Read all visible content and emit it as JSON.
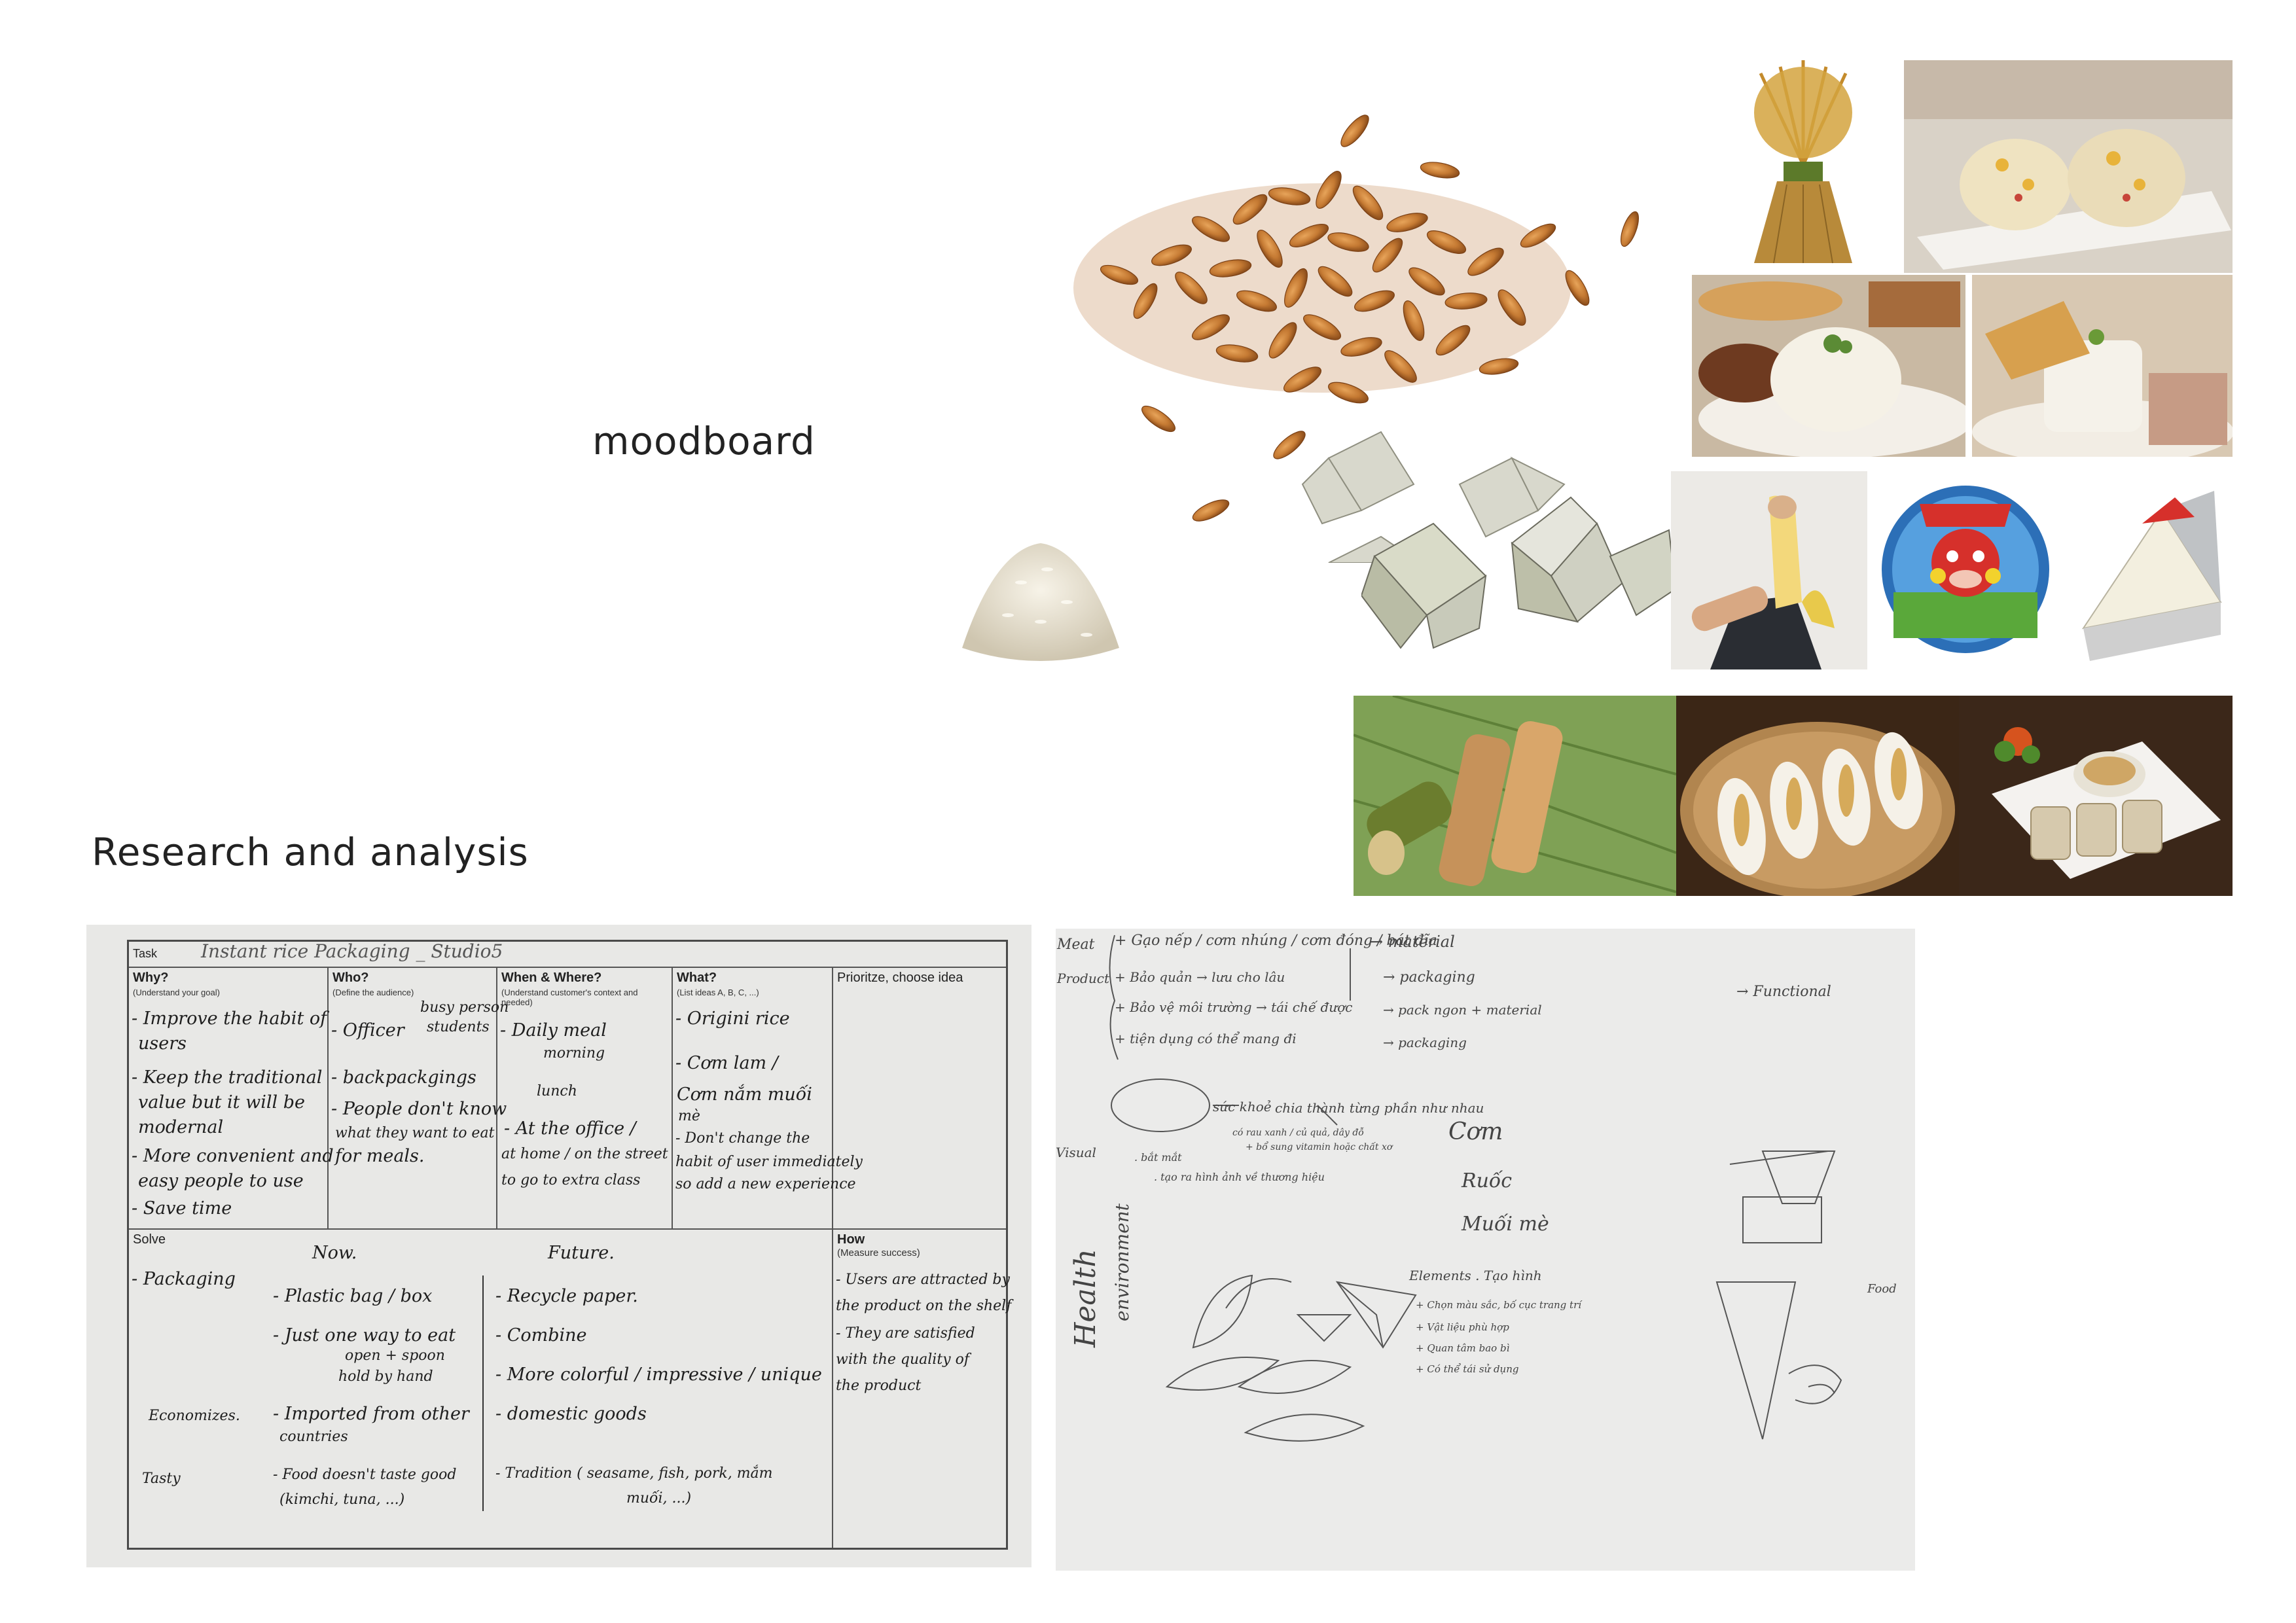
{
  "headings": {
    "moodboard": "moodboard",
    "research": "Research and analysis"
  },
  "worksheet": {
    "task_label": "Task",
    "task_value": "Instant rice Packaging _ Studio5",
    "columns": [
      {
        "title": "Why?",
        "subtitle": "(Understand your goal)"
      },
      {
        "title": "Who?",
        "subtitle": "(Define the audience)"
      },
      {
        "title": "When & Where?",
        "subtitle": "(Understand customer's context and needed)"
      },
      {
        "title": "What?",
        "subtitle": "(List ideas A, B, C, ...)"
      },
      {
        "title": "Prioritze, choose idea",
        "subtitle": ""
      }
    ],
    "why_notes": [
      "- Improve the habit of",
      "users",
      "- Keep the traditional",
      "value but it will be",
      "modernal",
      "- More convenient and",
      "easy people to use",
      "- Save time"
    ],
    "who_notes": [
      "- Officer",
      "busy person",
      "students",
      "- backpackgings",
      "- People don't know",
      "what they want to eat",
      "for meals."
    ],
    "when_notes": [
      "- Daily meal",
      "morning",
      "lunch",
      "- At the office /",
      "at home / on the street",
      "to go to extra class"
    ],
    "what_notes": [
      "- Origini rice",
      "- Cơm lam /",
      "Cơm nắm muối",
      "mè",
      "- Don't change the",
      "habit of user immediately",
      "so add a new experience"
    ],
    "solve_label": "Solve",
    "how_label": "How",
    "how_sub": "(Measure success)",
    "now_label": "Now.",
    "future_label": "Future.",
    "solve_rows": [
      "- Packaging",
      "Economizes.",
      "Tasty"
    ],
    "now_notes": [
      "- Plastic bag / box",
      "- Just one way to eat",
      "open + spoon",
      "hold by hand",
      "- Imported from other",
      "countries",
      "- Food doesn't taste good",
      "(kimchi, tuna, ...)"
    ],
    "future_notes": [
      "- Recycle paper.",
      "- Combine",
      "- More colorful / impressive / unique",
      "- domestic goods",
      "- Tradition ( seasame, fish, pork, mắm",
      "muối, ...)"
    ],
    "how_notes": [
      "- Users are attracted by",
      "the product on the shelf",
      "- They are satisfied",
      "with the quality of",
      "the product"
    ]
  },
  "sketch": {
    "side_labels": [
      "Meat",
      "Product",
      "Visual"
    ],
    "notes": [
      "+ Gạo nếp / cơm nhúng / cơm đóng / bát đĩa",
      "+ Bảo quản → lưu cho lâu",
      "+ Bảo vệ môi trường → tái chế được",
      "+ tiện dụng có thể mang đi",
      "→ material",
      "→ packaging",
      "→ pack ngon + material",
      "→ packaging",
      "→ Functional",
      "sức khoẻ",
      "chia thành từng phần như nhau",
      "có rau xanh / củ quả, dây đỗ",
      "+ bổ sung vitamin hoặc chất xơ",
      "Cơm",
      ". bắt mắt",
      ". tạo ra hình ảnh về thương hiệu",
      "Ruốc",
      "Muối mè",
      "Elements . Tạo hình",
      "+ Chọn màu sắc, bố cục trang trí",
      "+ Vật liệu phù hợp",
      "+ Quan tâm bao bì",
      "+ Có thể tái sử dụng",
      "Health",
      "environment",
      "Food"
    ]
  },
  "colors": {
    "background": "#ffffff",
    "text": "#1d1d1d",
    "paper": "#e8e8e6"
  },
  "photos": [
    "rice-grains-pile",
    "white-rice-pile",
    "rice-sheaf",
    "rice-balls-plate",
    "broken-rice-plate",
    "rice-cake-plate",
    "origami-wrappers",
    "banana-peeling",
    "cheese-box",
    "cheese-wedge",
    "bamboo-rice-tubes",
    "sticky-rice-rolls",
    "rice-rolls-dish"
  ]
}
